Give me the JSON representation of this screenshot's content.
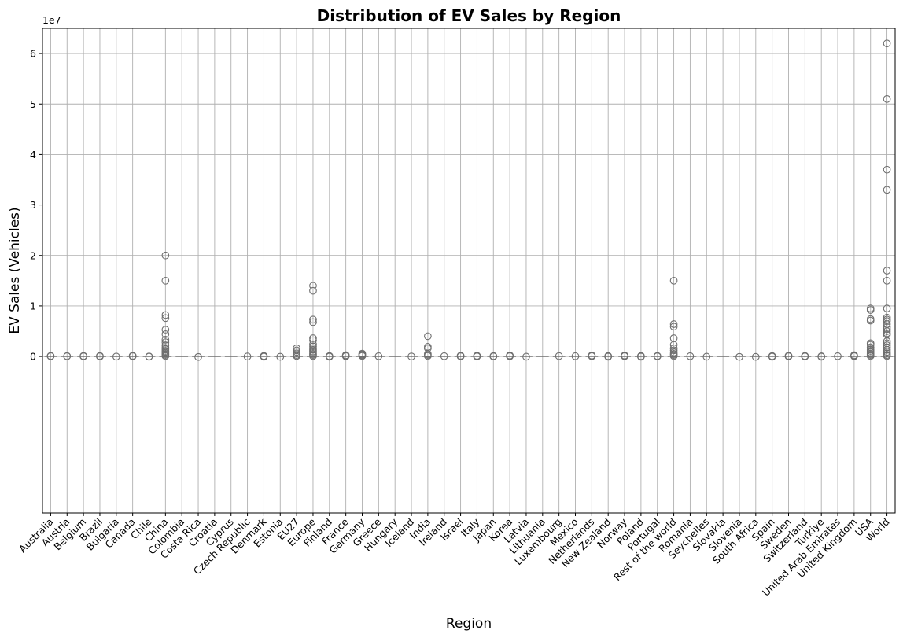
{
  "chart_data": {
    "type": "box",
    "title": "Distribution of EV Sales by Region",
    "xlabel": "Region",
    "ylabel": "EV Sales (Vehicles)",
    "y_offset_label": "1e7",
    "ylim": [
      -3.1,
      6.5
    ],
    "y_ticks": [
      0,
      1,
      2,
      3,
      4,
      5,
      6
    ],
    "grid": true,
    "colors": {
      "outline": "#6e6e6e",
      "grid": "#b0b0b0"
    },
    "categories": [
      "Australia",
      "Austria",
      "Belgium",
      "Brazil",
      "Bulgaria",
      "Canada",
      "Chile",
      "China",
      "Colombia",
      "Costa Rica",
      "Croatia",
      "Cyprus",
      "Czech Republic",
      "Denmark",
      "Estonia",
      "EU27",
      "Europe",
      "Finland",
      "France",
      "Germany",
      "Greece",
      "Hungary",
      "Iceland",
      "India",
      "Ireland",
      "Israel",
      "Italy",
      "Japan",
      "Korea",
      "Latvia",
      "Lithuania",
      "Luxembourg",
      "Mexico",
      "Netherlands",
      "New Zealand",
      "Norway",
      "Poland",
      "Portugal",
      "Rest of the world",
      "Romania",
      "Seychelles",
      "Slovakia",
      "Slovenia",
      "South Africa",
      "Spain",
      "Sweden",
      "Switzerland",
      "Turkiye",
      "United Arab Emirates",
      "United Kingdom",
      "USA",
      "World"
    ],
    "outliers": [
      [
        0.05,
        0.08,
        0.1
      ],
      [
        0.04,
        0.08
      ],
      [
        0.02,
        0.06,
        0.1
      ],
      [
        0.01,
        0.05,
        0.1
      ],
      [
        -0.03
      ],
      [
        0.03,
        0.09,
        0.14
      ],
      [
        0.0,
        -0.04
      ],
      [
        0.1,
        0.3,
        0.5,
        0.7,
        0.9,
        1.1,
        1.4,
        1.7,
        2.2,
        2.8,
        3.3,
        4.4,
        5.3,
        7.6,
        8.2,
        15.0,
        20.0
      ],
      [],
      [
        -0.1
      ],
      [],
      [],
      [
        0.0
      ],
      [
        -0.04,
        0.02,
        0.06,
        0.1
      ],
      [
        -0.06
      ],
      [
        0.1,
        0.3,
        0.6,
        0.9,
        1.2,
        1.6
      ],
      [
        0.1,
        0.3,
        0.5,
        0.8,
        1.0,
        1.3,
        1.6,
        2.0,
        2.4,
        3.2,
        3.6,
        6.8,
        7.3,
        13.0,
        14.0
      ],
      [
        -0.04,
        0.03,
        0.08
      ],
      [
        0.05,
        0.15,
        0.25
      ],
      [
        0.1,
        0.25,
        0.4,
        0.55
      ],
      [
        0.05
      ],
      [],
      [
        0.0
      ],
      [
        0.1,
        0.3,
        0.5,
        1.6,
        1.9,
        4.0
      ],
      [
        0.05
      ],
      [
        0.02,
        0.08,
        0.15
      ],
      [
        0.0,
        0.08,
        0.14
      ],
      [
        0.0,
        0.09
      ],
      [
        0.04,
        0.14,
        0.2
      ],
      [
        -0.05
      ],
      [],
      [
        0.08
      ],
      [
        0.05
      ],
      [
        0.05,
        0.12,
        0.2
      ],
      [
        -0.05,
        0.03,
        0.08
      ],
      [
        0.05,
        0.15,
        0.2
      ],
      [
        -0.05,
        0.04,
        0.08
      ],
      [
        0.02,
        0.1
      ],
      [
        0.1,
        0.3,
        0.5,
        0.8,
        1.2,
        1.6,
        2.3,
        3.6,
        5.9,
        6.4,
        15.0
      ],
      [
        0.05
      ],
      [
        -0.05
      ],
      [],
      [
        -0.08
      ],
      [
        -0.08
      ],
      [
        -0.05,
        0.03,
        0.08
      ],
      [
        0.02,
        0.08,
        0.14
      ],
      [
        0.0,
        0.05,
        0.1
      ],
      [
        -0.05,
        0.03
      ],
      [
        0.05
      ],
      [
        0.05,
        0.15,
        0.25
      ],
      [
        0.1,
        0.3,
        0.5,
        0.8,
        1.1,
        1.4,
        1.8,
        2.3,
        2.6,
        7.1,
        7.4,
        9.2,
        9.5
      ],
      [
        0.1,
        0.3,
        0.6,
        0.9,
        1.3,
        1.8,
        2.2,
        2.6,
        3.0,
        4.3,
        4.6,
        5.0,
        5.4,
        5.8,
        6.4,
        7.0,
        7.3,
        7.7,
        9.5,
        15.0,
        17.0,
        33.0,
        37.0,
        51.0,
        62.0
      ]
    ]
  }
}
